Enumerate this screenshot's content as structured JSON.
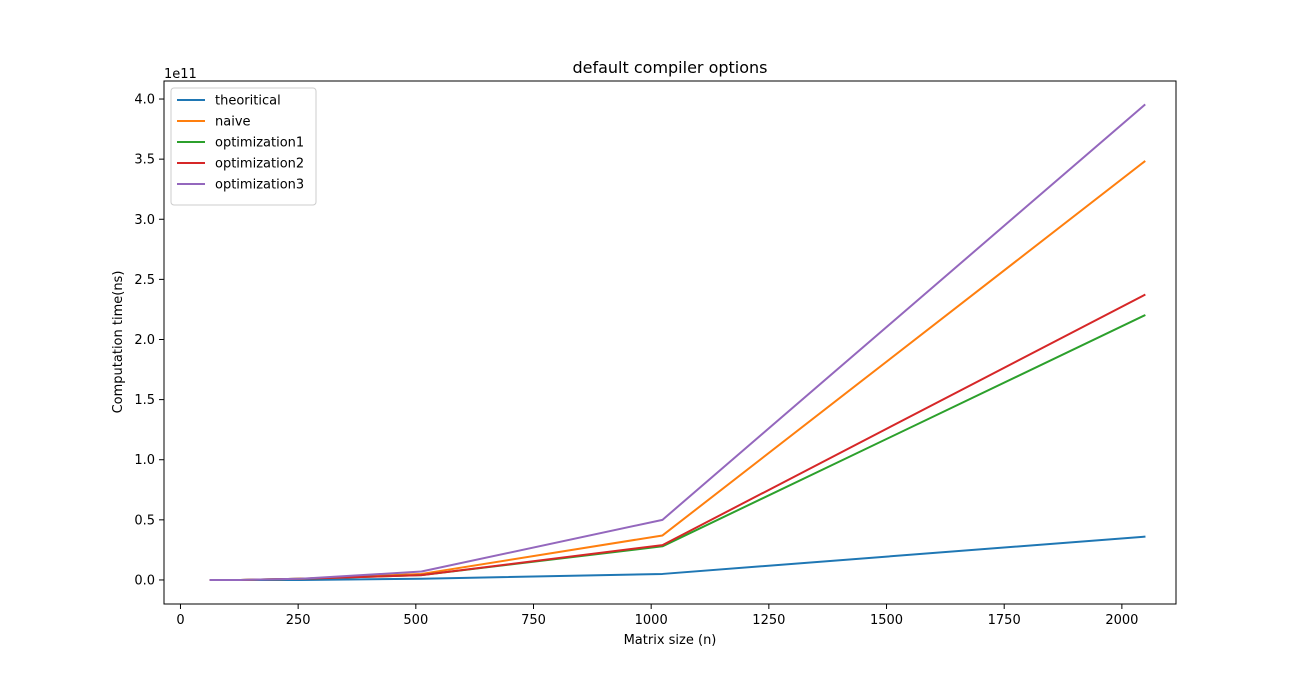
{
  "chart_data": {
    "type": "line",
    "title": "default compiler options",
    "xlabel": "Matrix size (n)",
    "ylabel": "Computation time(ns)",
    "offset_text": "1e11",
    "xlim": [
      -35,
      2115
    ],
    "ylim": [
      -0.2,
      4.15
    ],
    "y_scale_multiplier": 100000000000.0,
    "xticks": [
      0,
      250,
      500,
      750,
      1000,
      1250,
      1500,
      1750,
      2000
    ],
    "xtick_labels": [
      "0",
      "250",
      "500",
      "750",
      "1000",
      "1250",
      "1500",
      "1750",
      "2000"
    ],
    "yticks": [
      0.0,
      0.5,
      1.0,
      1.5,
      2.0,
      2.5,
      3.0,
      3.5,
      4.0
    ],
    "ytick_labels": [
      "0.0",
      "0.5",
      "1.0",
      "1.5",
      "2.0",
      "2.5",
      "3.0",
      "3.5",
      "4.0"
    ],
    "grid": false,
    "legend_position": "top-left",
    "x": [
      64,
      128,
      256,
      512,
      1024,
      2048
    ],
    "series": [
      {
        "name": "theoritical",
        "color": "#1f77b4",
        "values": [
          0.0,
          0.0,
          0.0,
          0.01,
          0.05,
          0.36
        ]
      },
      {
        "name": "naive",
        "color": "#ff7f0e",
        "values": [
          0.0,
          0.0,
          0.01,
          0.05,
          0.37,
          3.48
        ]
      },
      {
        "name": "optimization1",
        "color": "#2ca02c",
        "values": [
          0.0,
          0.0,
          0.01,
          0.04,
          0.28,
          2.2
        ]
      },
      {
        "name": "optimization2",
        "color": "#d62728",
        "values": [
          0.0,
          0.0,
          0.01,
          0.04,
          0.29,
          2.37
        ]
      },
      {
        "name": "optimization3",
        "color": "#9467bd",
        "values": [
          0.0,
          0.0,
          0.01,
          0.07,
          0.5,
          3.95
        ]
      }
    ]
  }
}
